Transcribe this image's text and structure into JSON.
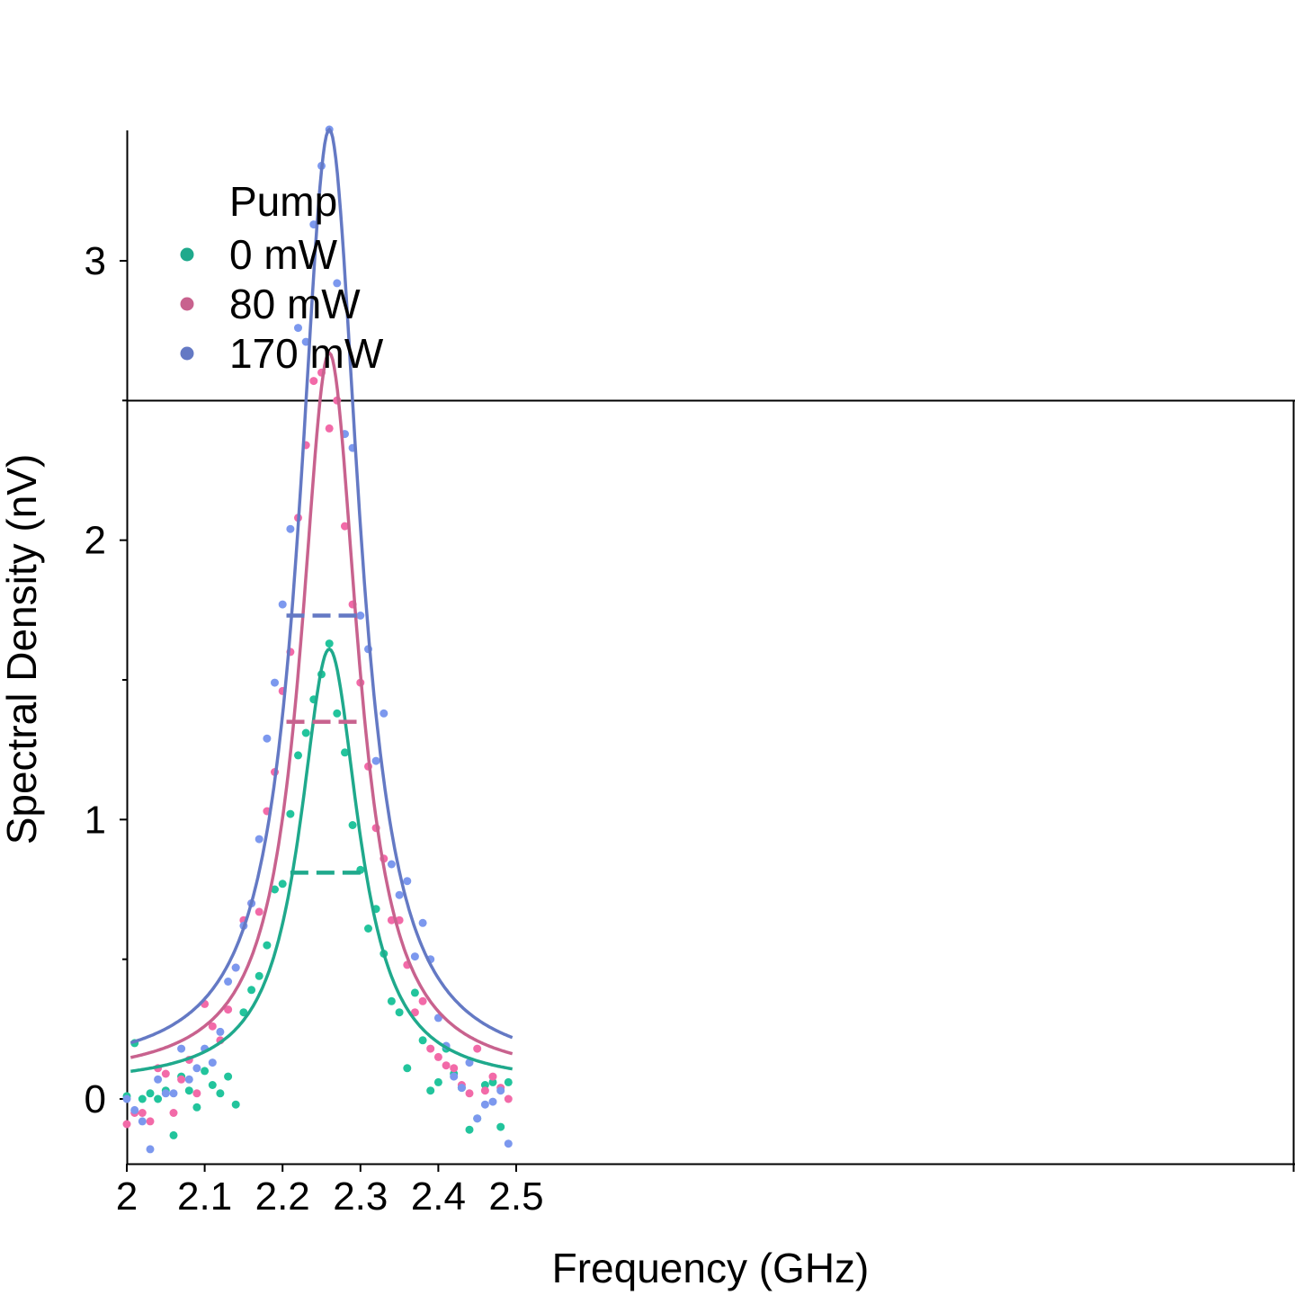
{
  "chart_data": {
    "type": "scatter",
    "xlabel": "Frequency (GHz)",
    "ylabel": "Spectral Density (nV)",
    "xlim": [
      2.0,
      2.5
    ],
    "ylim": [
      -0.23,
      3.48
    ],
    "x_ticks": [
      "2",
      "2.1",
      "2.2",
      "2.3",
      "2.4",
      "2.5"
    ],
    "x_tick_values": [
      2.0,
      2.1,
      2.2,
      2.3,
      2.4,
      2.5
    ],
    "y_ticks": [
      "0",
      "1",
      "2",
      "3"
    ],
    "y_tick_values": [
      0,
      1,
      2,
      3
    ],
    "y_minor_ticks": [
      0.5,
      1.5,
      2.5
    ],
    "grid": false,
    "legend": {
      "title": "Pump",
      "placement": "top-left"
    },
    "series": [
      {
        "name": "0 mW",
        "color": "#1fa98c",
        "point_color": "#22c49c",
        "fit": {
          "center": 2.26,
          "amplitude": 1.56,
          "hwhm": 0.046,
          "baseline": 0.05,
          "x_range": [
            2.005,
            2.495
          ]
        },
        "fwhm_marker": {
          "y": 0.81,
          "x": [
            2.21,
            2.3
          ]
        },
        "points": [
          [
            2.0,
            0.01
          ],
          [
            2.01,
            0.2
          ],
          [
            2.02,
            0.0
          ],
          [
            2.03,
            0.02
          ],
          [
            2.04,
            0.0
          ],
          [
            2.05,
            0.03
          ],
          [
            2.06,
            -0.13
          ],
          [
            2.07,
            0.08
          ],
          [
            2.08,
            0.03
          ],
          [
            2.09,
            -0.03
          ],
          [
            2.1,
            0.1
          ],
          [
            2.11,
            0.05
          ],
          [
            2.12,
            0.02
          ],
          [
            2.13,
            0.08
          ],
          [
            2.14,
            -0.02
          ],
          [
            2.15,
            0.31
          ],
          [
            2.16,
            0.39
          ],
          [
            2.17,
            0.44
          ],
          [
            2.18,
            0.55
          ],
          [
            2.19,
            0.75
          ],
          [
            2.2,
            0.77
          ],
          [
            2.21,
            1.02
          ],
          [
            2.22,
            1.23
          ],
          [
            2.23,
            1.31
          ],
          [
            2.24,
            1.43
          ],
          [
            2.25,
            1.52
          ],
          [
            2.26,
            1.63
          ],
          [
            2.27,
            1.38
          ],
          [
            2.28,
            1.24
          ],
          [
            2.29,
            0.98
          ],
          [
            2.3,
            0.82
          ],
          [
            2.31,
            0.61
          ],
          [
            2.32,
            0.68
          ],
          [
            2.33,
            0.52
          ],
          [
            2.34,
            0.35
          ],
          [
            2.35,
            0.31
          ],
          [
            2.36,
            0.11
          ],
          [
            2.37,
            0.38
          ],
          [
            2.38,
            0.21
          ],
          [
            2.39,
            0.03
          ],
          [
            2.4,
            0.06
          ],
          [
            2.41,
            0.18
          ],
          [
            2.42,
            0.09
          ],
          [
            2.43,
            0.04
          ],
          [
            2.44,
            -0.11
          ],
          [
            2.45,
            -0.07
          ],
          [
            2.46,
            0.05
          ],
          [
            2.47,
            0.06
          ],
          [
            2.48,
            -0.1
          ],
          [
            2.49,
            0.06
          ]
        ]
      },
      {
        "name": "80 mW",
        "color": "#c8628e",
        "point_color": "#f26aa8",
        "fit": {
          "center": 2.26,
          "amplitude": 2.6,
          "hwhm": 0.045,
          "baseline": 0.07,
          "x_range": [
            2.005,
            2.495
          ]
        },
        "fwhm_marker": {
          "y": 1.35,
          "x": [
            2.205,
            2.305
          ]
        },
        "points": [
          [
            2.0,
            -0.09
          ],
          [
            2.01,
            -0.05
          ],
          [
            2.02,
            -0.05
          ],
          [
            2.03,
            -0.08
          ],
          [
            2.04,
            0.11
          ],
          [
            2.05,
            0.09
          ],
          [
            2.06,
            -0.05
          ],
          [
            2.07,
            0.07
          ],
          [
            2.08,
            0.14
          ],
          [
            2.09,
            0.02
          ],
          [
            2.1,
            0.34
          ],
          [
            2.11,
            0.26
          ],
          [
            2.12,
            0.21
          ],
          [
            2.13,
            0.32
          ],
          [
            2.14,
            0.47
          ],
          [
            2.15,
            0.64
          ],
          [
            2.16,
            0.7
          ],
          [
            2.17,
            0.67
          ],
          [
            2.18,
            1.03
          ],
          [
            2.19,
            1.17
          ],
          [
            2.2,
            1.46
          ],
          [
            2.21,
            1.6
          ],
          [
            2.22,
            2.08
          ],
          [
            2.23,
            2.34
          ],
          [
            2.24,
            2.57
          ],
          [
            2.25,
            2.6
          ],
          [
            2.26,
            2.4
          ],
          [
            2.27,
            2.5
          ],
          [
            2.28,
            2.05
          ],
          [
            2.29,
            1.77
          ],
          [
            2.3,
            1.49
          ],
          [
            2.31,
            1.19
          ],
          [
            2.32,
            0.97
          ],
          [
            2.33,
            0.86
          ],
          [
            2.34,
            0.64
          ],
          [
            2.35,
            0.64
          ],
          [
            2.36,
            0.48
          ],
          [
            2.37,
            0.31
          ],
          [
            2.38,
            0.35
          ],
          [
            2.39,
            0.18
          ],
          [
            2.4,
            0.15
          ],
          [
            2.41,
            0.12
          ],
          [
            2.42,
            0.11
          ],
          [
            2.43,
            0.05
          ],
          [
            2.44,
            0.02
          ],
          [
            2.45,
            0.18
          ],
          [
            2.46,
            0.03
          ],
          [
            2.47,
            0.08
          ],
          [
            2.48,
            0.04
          ],
          [
            2.49,
            0.0
          ]
        ]
      },
      {
        "name": "170 mW",
        "color": "#6479c4",
        "point_color": "#7c98ee",
        "fit": {
          "center": 2.26,
          "amplitude": 3.38,
          "hwhm": 0.047,
          "baseline": 0.09,
          "x_range": [
            2.005,
            2.495
          ]
        },
        "fwhm_marker": {
          "y": 1.73,
          "x": [
            2.205,
            2.305
          ]
        },
        "points": [
          [
            2.0,
            0.0
          ],
          [
            2.01,
            -0.04
          ],
          [
            2.02,
            -0.08
          ],
          [
            2.03,
            -0.18
          ],
          [
            2.04,
            0.07
          ],
          [
            2.05,
            0.02
          ],
          [
            2.06,
            0.02
          ],
          [
            2.07,
            0.18
          ],
          [
            2.08,
            0.07
          ],
          [
            2.09,
            0.11
          ],
          [
            2.1,
            0.18
          ],
          [
            2.11,
            0.13
          ],
          [
            2.12,
            0.24
          ],
          [
            2.13,
            0.42
          ],
          [
            2.14,
            0.47
          ],
          [
            2.15,
            0.62
          ],
          [
            2.16,
            0.7
          ],
          [
            2.17,
            0.93
          ],
          [
            2.18,
            1.29
          ],
          [
            2.19,
            1.49
          ],
          [
            2.2,
            1.77
          ],
          [
            2.21,
            2.04
          ],
          [
            2.22,
            2.76
          ],
          [
            2.23,
            2.71
          ],
          [
            2.24,
            3.13
          ],
          [
            2.25,
            3.34
          ],
          [
            2.26,
            3.47
          ],
          [
            2.27,
            2.92
          ],
          [
            2.28,
            2.38
          ],
          [
            2.29,
            2.33
          ],
          [
            2.3,
            1.73
          ],
          [
            2.31,
            1.61
          ],
          [
            2.32,
            1.21
          ],
          [
            2.33,
            1.38
          ],
          [
            2.34,
            0.84
          ],
          [
            2.35,
            0.73
          ],
          [
            2.36,
            0.78
          ],
          [
            2.37,
            0.51
          ],
          [
            2.38,
            0.63
          ],
          [
            2.39,
            0.5
          ],
          [
            2.4,
            0.29
          ],
          [
            2.41,
            0.19
          ],
          [
            2.42,
            0.08
          ],
          [
            2.43,
            0.04
          ],
          [
            2.44,
            0.13
          ],
          [
            2.45,
            -0.07
          ],
          [
            2.46,
            -0.02
          ],
          [
            2.47,
            -0.01
          ],
          [
            2.48,
            0.03
          ],
          [
            2.49,
            -0.16
          ]
        ]
      }
    ]
  }
}
